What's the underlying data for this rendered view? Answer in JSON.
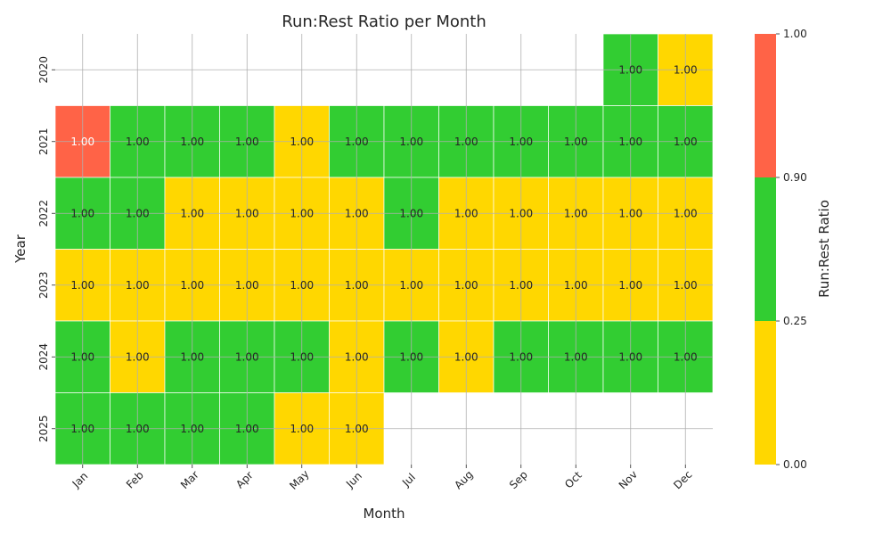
{
  "chart_data": {
    "type": "heatmap",
    "title": "Run:Rest Ratio per Month",
    "xlabel": "Month",
    "ylabel": "Year",
    "x_categories": [
      "Jan",
      "Feb",
      "Mar",
      "Apr",
      "May",
      "Jun",
      "Jul",
      "Aug",
      "Sep",
      "Oct",
      "Nov",
      "Dec"
    ],
    "y_categories": [
      "2020",
      "2021",
      "2022",
      "2023",
      "2024",
      "2025"
    ],
    "colors": {
      "0.00-0.25": "#FFD700",
      "0.25-0.90": "#32CD32",
      "0.90-1.00": "#FF6347",
      "grid": "#b0b0b0",
      "light_text": "#ffffff",
      "dark_text": "#262626"
    },
    "cell_values_label": "1.00",
    "cell_bins": [
      [
        "",
        "",
        "",
        "",
        "",
        "",
        "",
        "",
        "",
        "",
        "0.25-0.90",
        "0.00-0.25"
      ],
      [
        "0.90-1.00",
        "0.25-0.90",
        "0.25-0.90",
        "0.25-0.90",
        "0.00-0.25",
        "0.25-0.90",
        "0.25-0.90",
        "0.25-0.90",
        "0.25-0.90",
        "0.25-0.90",
        "0.25-0.90",
        "0.25-0.90"
      ],
      [
        "0.25-0.90",
        "0.25-0.90",
        "0.00-0.25",
        "0.00-0.25",
        "0.00-0.25",
        "0.00-0.25",
        "0.25-0.90",
        "0.00-0.25",
        "0.00-0.25",
        "0.00-0.25",
        "0.00-0.25",
        "0.00-0.25"
      ],
      [
        "0.00-0.25",
        "0.00-0.25",
        "0.00-0.25",
        "0.00-0.25",
        "0.00-0.25",
        "0.00-0.25",
        "0.00-0.25",
        "0.00-0.25",
        "0.00-0.25",
        "0.00-0.25",
        "0.00-0.25",
        "0.00-0.25"
      ],
      [
        "0.25-0.90",
        "0.00-0.25",
        "0.25-0.90",
        "0.25-0.90",
        "0.25-0.90",
        "0.00-0.25",
        "0.25-0.90",
        "0.00-0.25",
        "0.25-0.90",
        "0.25-0.90",
        "0.25-0.90",
        "0.25-0.90"
      ],
      [
        "0.25-0.90",
        "0.25-0.90",
        "0.25-0.90",
        "0.25-0.90",
        "0.00-0.25",
        "0.00-0.25",
        "",
        "",
        "",
        "",
        "",
        ""
      ]
    ],
    "colorbar": {
      "label": "Run:Rest Ratio",
      "ticks": [
        "0.00",
        "0.25",
        "0.90",
        "1.00"
      ],
      "segments": [
        {
          "range": "0.00-0.25",
          "color": "#FFD700"
        },
        {
          "range": "0.25-0.90",
          "color": "#32CD32"
        },
        {
          "range": "0.90-1.00",
          "color": "#FF6347"
        }
      ]
    },
    "grid": true
  }
}
